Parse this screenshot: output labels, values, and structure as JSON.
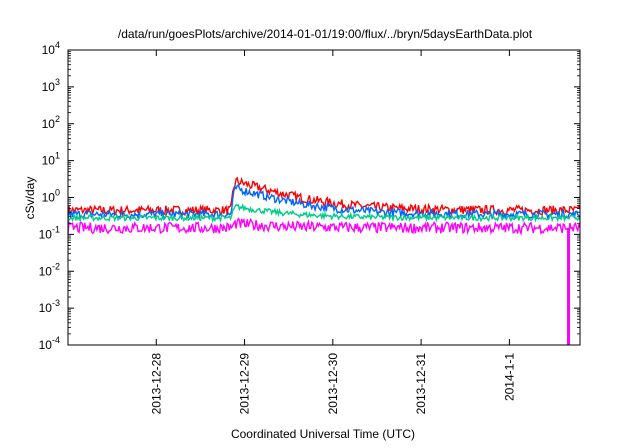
{
  "chart_data": {
    "type": "line",
    "title": "/data/run/goesPlots/archive/2014-01-01/19:00/flux/../bryn/5daysEarthData.plot",
    "xlabel": "Coordinated Universal Time (UTC)",
    "ylabel": "cSv/day",
    "y_scale": "log",
    "ylim_exp": [
      -4,
      4
    ],
    "y_tick_base": "10",
    "y_tick_exponents": [
      "-4",
      "-3",
      "-2",
      "-1",
      "0",
      "1",
      "2",
      "3",
      "4"
    ],
    "x_ticks": [
      {
        "label": "2013-12-28",
        "day": 1
      },
      {
        "label": "2013-12-29",
        "day": 2
      },
      {
        "label": "2013-12-30",
        "day": 3
      },
      {
        "label": "2013-12-31",
        "day": 4
      },
      {
        "label": "2014-1-1",
        "day": 5
      }
    ],
    "xlim_day": [
      0,
      5.8
    ],
    "grid": false,
    "legend": "none",
    "series": [
      {
        "color": "#ff0000",
        "base": 0.45,
        "peak": 2.6,
        "noise": 0.25
      },
      {
        "color": "#0066ff",
        "base": 0.35,
        "peak": 1.6,
        "noise": 0.22
      },
      {
        "color": "#00cc88",
        "base": 0.28,
        "peak": 0.32,
        "noise": 0.15
      },
      {
        "color": "#ff00ff",
        "base": 0.15,
        "peak": 0.05,
        "noise": 0.3,
        "dropout_day": 5.67
      }
    ]
  }
}
